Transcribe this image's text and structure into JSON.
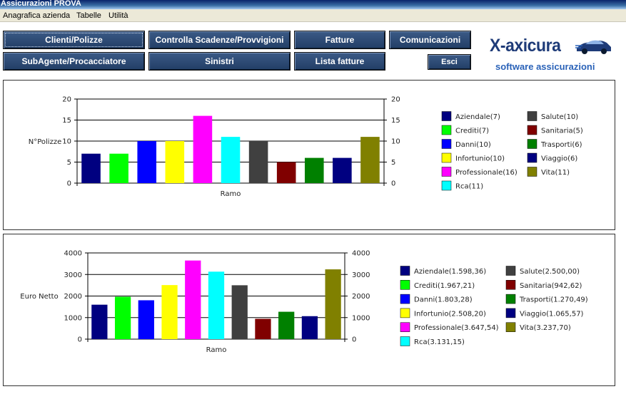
{
  "window": {
    "title": "Assicurazioni PROVA"
  },
  "menu": [
    "Anagrafica azienda",
    "Tabelle",
    "Utilità"
  ],
  "toolbar": {
    "row1": [
      "Clienti/Polizze",
      "Controlla Scadenze/Provvigioni",
      "Fatture",
      "Comunicazioni"
    ],
    "row2": [
      "SubAgente/Procacciatore",
      "Sinistri",
      "Lista fatture",
      "Esci"
    ]
  },
  "logo": {
    "name": "X-axicura",
    "tagline": "software assicurazioni"
  },
  "colors": [
    "#000080",
    "#00ff00",
    "#0000ff",
    "#ffff00",
    "#ff00ff",
    "#00ffff",
    "#404040",
    "#800000",
    "#008000",
    "#000080",
    "#808000"
  ],
  "chart_data": [
    {
      "type": "bar",
      "xlabel": "Ramo",
      "ylabel": "N°Polizze",
      "ylim": [
        0,
        20
      ],
      "yticks": [
        "0",
        "5",
        "10",
        "15",
        "20"
      ],
      "grid": true,
      "legend_position": "right",
      "categories": [
        "Aziendale",
        "Crediti",
        "Danni",
        "Infortunio",
        "Professionale",
        "Rca",
        "Salute",
        "Sanitaria",
        "Trasporti",
        "Viaggio",
        "Vita"
      ],
      "values": [
        7,
        7,
        10,
        10,
        16,
        11,
        10,
        5,
        6,
        6,
        11
      ],
      "legend": [
        "Aziendale(7)",
        "Crediti(7)",
        "Danni(10)",
        "Infortunio(10)",
        "Professionale(16)",
        "Rca(11)",
        "Salute(10)",
        "Sanitaria(5)",
        "Trasporti(6)",
        "Viaggio(6)",
        "Vita(11)"
      ]
    },
    {
      "type": "bar",
      "xlabel": "Ramo",
      "ylabel": "Euro Netto",
      "ylim": [
        0,
        4000
      ],
      "yticks": [
        "0",
        "1000",
        "2000",
        "3000",
        "4000"
      ],
      "grid": true,
      "legend_position": "right",
      "categories": [
        "Aziendale",
        "Crediti",
        "Danni",
        "Infortunio",
        "Professionale",
        "Rca",
        "Salute",
        "Sanitaria",
        "Trasporti",
        "Viaggio",
        "Vita"
      ],
      "values": [
        1598.36,
        1967.21,
        1803.28,
        2508.2,
        3647.54,
        3131.15,
        2500.0,
        942.62,
        1270.49,
        1065.57,
        3237.7
      ],
      "legend": [
        "Aziendale(1.598,36)",
        "Crediti(1.967,21)",
        "Danni(1.803,28)",
        "Infortunio(2.508,20)",
        "Professionale(3.647,54)",
        "Rca(3.131,15)",
        "Salute(2.500,00)",
        "Sanitaria(942,62)",
        "Trasporti(1.270,49)",
        "Viaggio(1.065,57)",
        "Vita(3.237,70)"
      ]
    }
  ]
}
